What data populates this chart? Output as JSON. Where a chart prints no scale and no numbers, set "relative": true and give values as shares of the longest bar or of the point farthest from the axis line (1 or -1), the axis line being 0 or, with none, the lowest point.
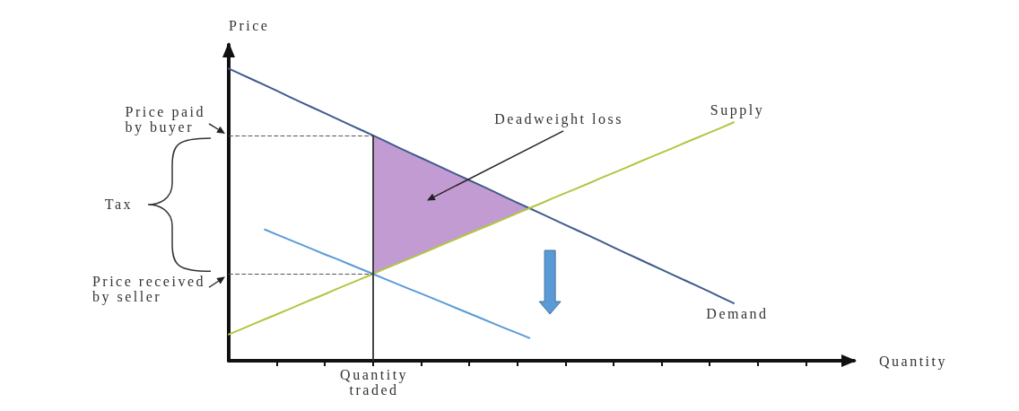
{
  "chart_data": {
    "type": "line",
    "relative": true,
    "xlabel": "Quantity",
    "ylabel": "Price",
    "categories": [
      null,
      null,
      null,
      null,
      null,
      null,
      null,
      null,
      null,
      null,
      null,
      null,
      null,
      null,
      null,
      null,
      null,
      null,
      null,
      null,
      null,
      null,
      null,
      null,
      null,
      null,
      null,
      null,
      null,
      null,
      null,
      null,
      null,
      null,
      null,
      null,
      null,
      null,
      null,
      null,
      null,
      null,
      null,
      null,
      null,
      null,
      null,
      null,
      null,
      null,
      null,
      null,
      null
    ],
    "series": [
      {
        "name": "Demand",
        "color": "#3f5b8c",
        "values": [
          1.0,
          0.981,
          0.962,
          0.943,
          0.924,
          0.904,
          0.885,
          0.866,
          0.847,
          0.828,
          0.809,
          0.79,
          0.771,
          0.752,
          0.732,
          0.713,
          0.694,
          0.675,
          0.656,
          0.637,
          0.618,
          0.599,
          0.58,
          0.56,
          0.541,
          0.522,
          0.503,
          0.484,
          0.465,
          0.446,
          0.427,
          0.408,
          0.388,
          0.369,
          0.35,
          0.331,
          0.312,
          0.293,
          0.274,
          0.255,
          0.236,
          0.216,
          0.197,
          null,
          null,
          null,
          null,
          null,
          null,
          null,
          null,
          null,
          null
        ]
      },
      {
        "name": "Supply",
        "color": "#b2c640",
        "values": [
          0.09,
          0.107,
          0.125,
          0.142,
          0.159,
          0.176,
          0.194,
          0.211,
          0.228,
          0.246,
          0.263,
          0.28,
          0.297,
          0.315,
          0.332,
          0.349,
          0.366,
          0.384,
          0.401,
          0.418,
          0.436,
          0.453,
          0.47,
          0.487,
          0.505,
          0.522,
          0.539,
          0.557,
          0.574,
          0.591,
          0.608,
          0.626,
          0.643,
          0.66,
          0.678,
          0.695,
          0.712,
          0.729,
          0.747,
          0.764,
          0.781,
          0.798,
          0.816,
          null,
          null,
          null,
          null,
          null,
          null,
          null,
          null,
          null,
          null
        ]
      },
      {
        "color": "#5b9bd5",
        "values": [
          null,
          null,
          null,
          0.449,
          0.432,
          0.415,
          0.398,
          0.381,
          0.364,
          0.348,
          0.331,
          0.314,
          0.297,
          0.28,
          0.263,
          0.246,
          0.23,
          0.213,
          0.196,
          0.179,
          0.162,
          0.145,
          0.128,
          0.111,
          0.095,
          0.078,
          null,
          null,
          null,
          null,
          null,
          null,
          null,
          null,
          null,
          null,
          null,
          null,
          null,
          null,
          null,
          null,
          null,
          null,
          null,
          null,
          null,
          null,
          null,
          null,
          null,
          null,
          null
        ]
      },
      {
        "type": "area",
        "name": "Deadweight loss",
        "color": "#c39bd3",
        "values": [
          null,
          null,
          null,
          null,
          null,
          null,
          null,
          null,
          null,
          null,
          null,
          null,
          0.771,
          0.752,
          0.732,
          0.713,
          0.694,
          0.675,
          0.656,
          0.637,
          0.618,
          0.599,
          0.58,
          0.56,
          0.541,
          0.522,
          null,
          null,
          null,
          null,
          null,
          null,
          null,
          null,
          null,
          null,
          null,
          null,
          null,
          null,
          null,
          null,
          null,
          null,
          null,
          null,
          null,
          null,
          null,
          null,
          null,
          null,
          null
        ]
      }
    ],
    "ref_lines": [
      {
        "axis": "y",
        "value": 0.771,
        "label": "Price paid by buyer",
        "color": "#555555",
        "line_style": "dashed"
      },
      {
        "axis": "y",
        "value": 0.297,
        "label": "Price received by seller",
        "color": "#555555",
        "line_style": "dashed"
      }
    ],
    "annotations": [
      "Tax",
      "Quantity traded"
    ]
  }
}
